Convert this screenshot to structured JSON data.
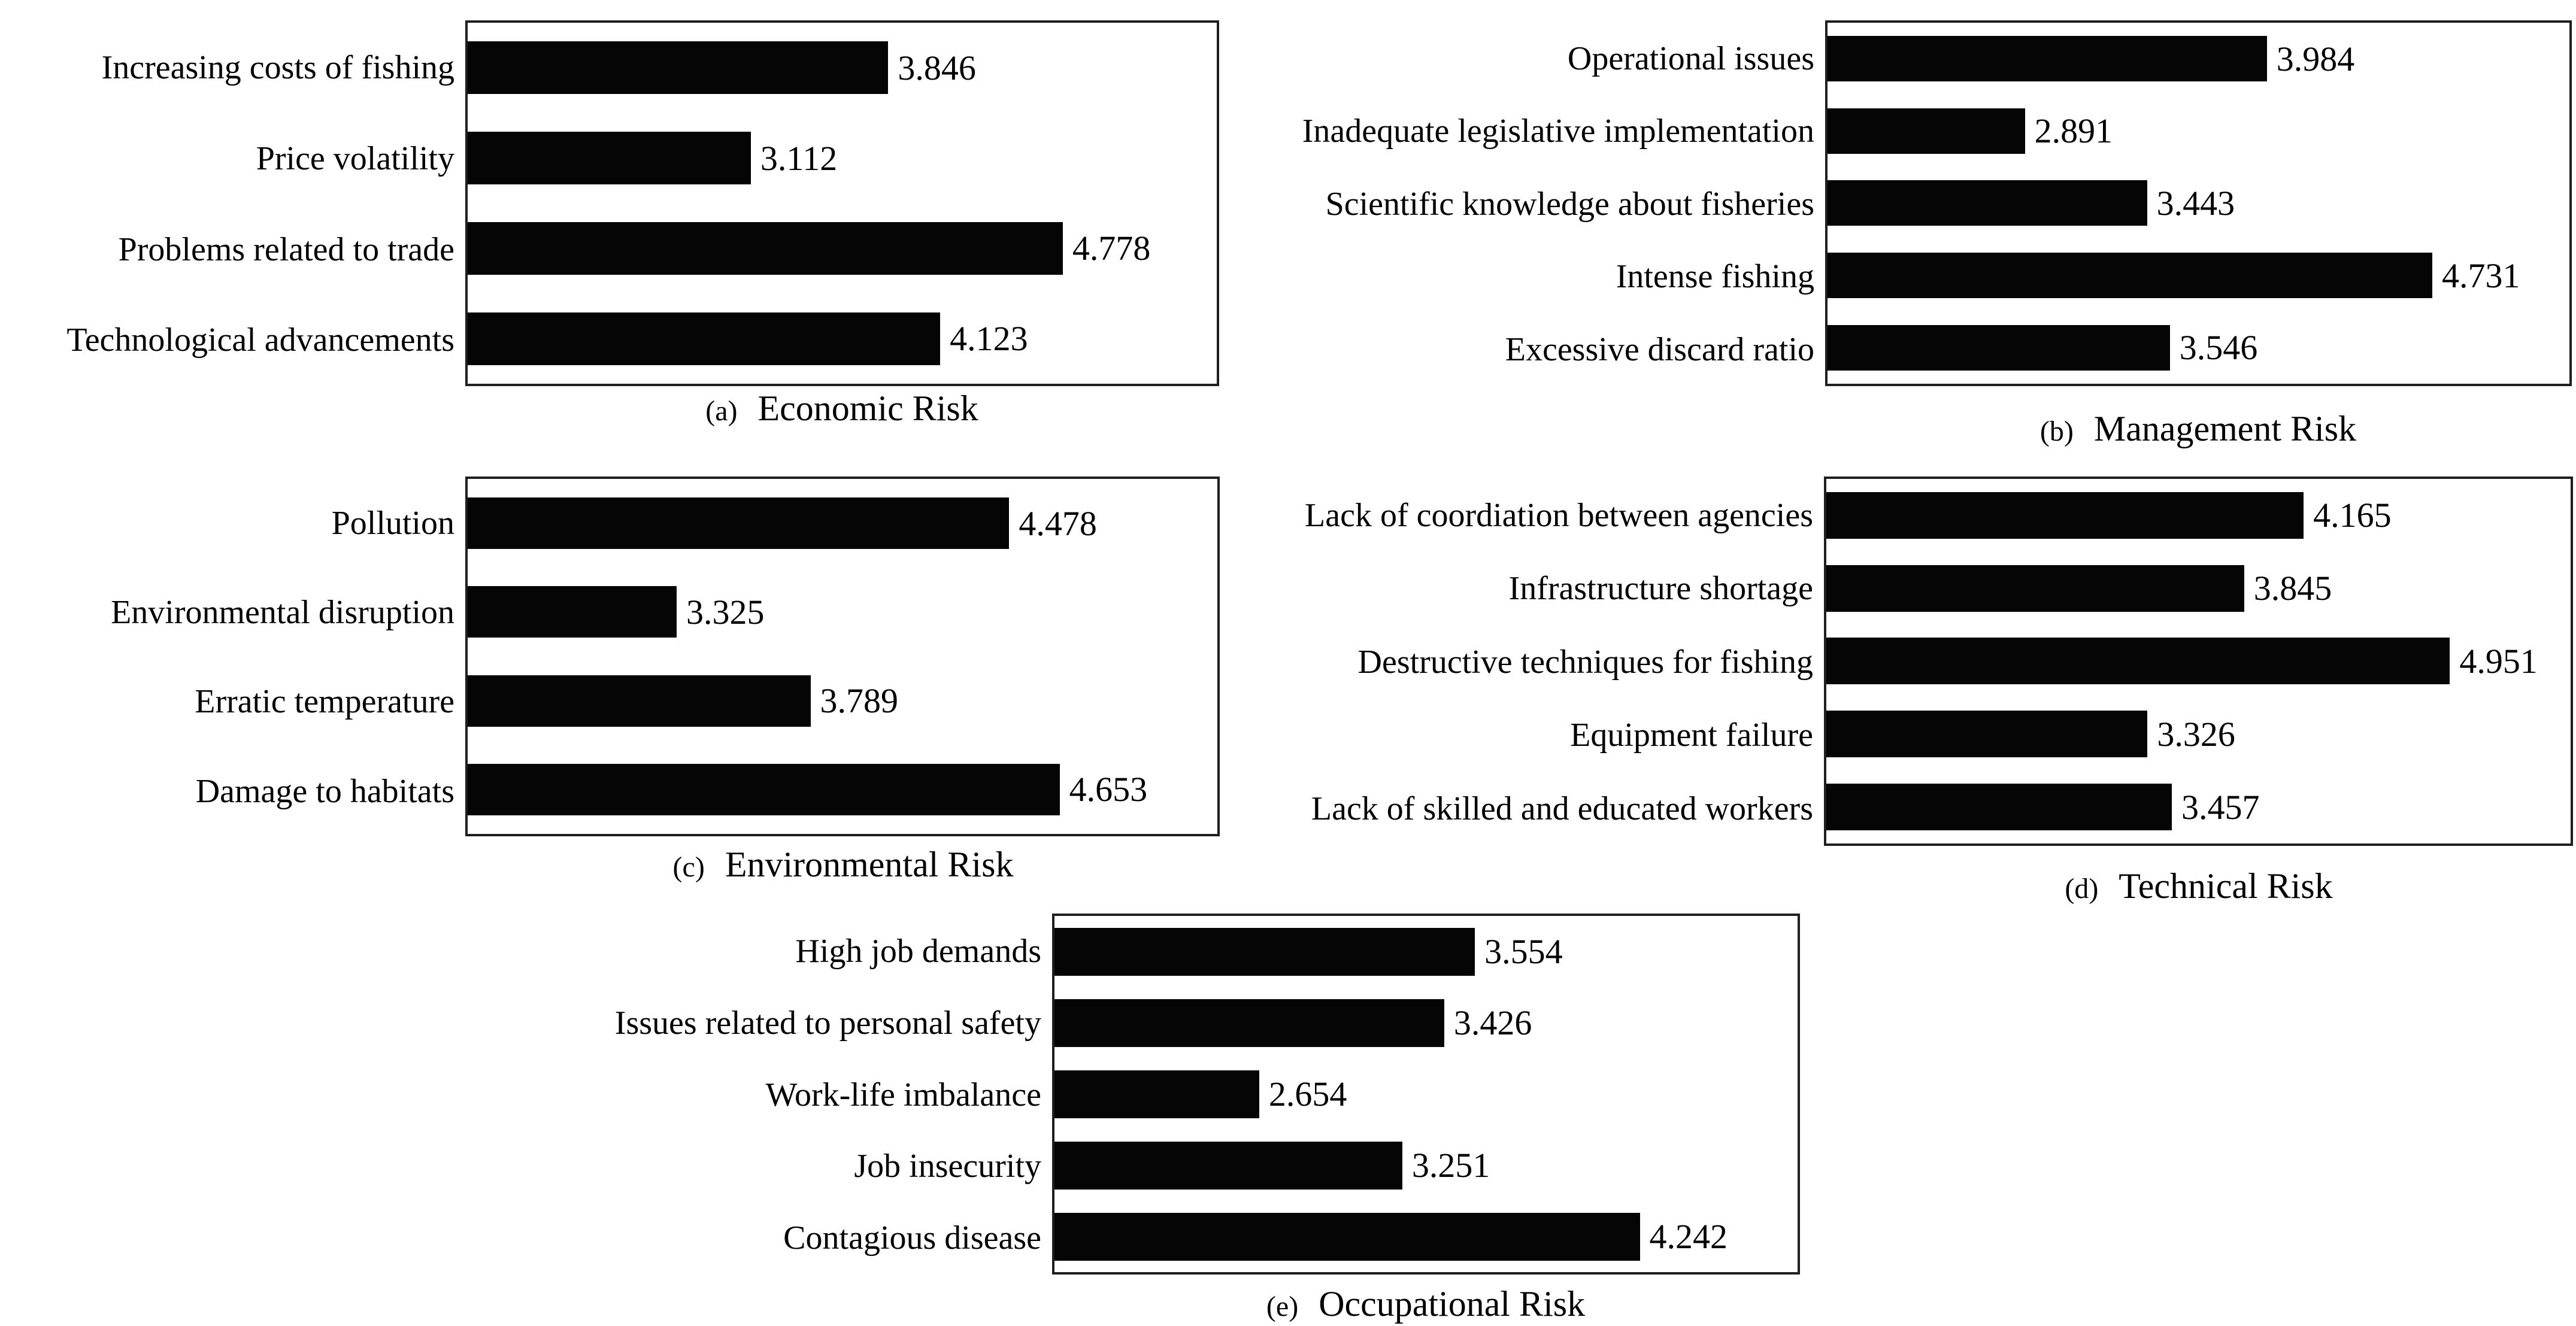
{
  "figure": {
    "background": "#ffffff",
    "bar_color": "#050505",
    "border_color": "#1f1f1f",
    "text_color": "#000000"
  },
  "chart_data": [
    {
      "id": "a",
      "type": "bar",
      "orientation": "horizontal",
      "caption_index": "(a)",
      "title": "Economic Risk",
      "categories": [
        "Increasing costs of fishing",
        "Price volatility",
        "Problems related to trade",
        "Technological advancements"
      ],
      "values": [
        3.846,
        3.112,
        4.778,
        4.123
      ],
      "xlim": [
        1.6,
        5.6
      ],
      "grid": false,
      "legend": "none",
      "value_labels_shown": true
    },
    {
      "id": "b",
      "type": "bar",
      "orientation": "horizontal",
      "caption_index": "(b)",
      "title": "Management Risk",
      "categories": [
        "Operational issues",
        "Inadequate legislative implementation",
        "Scientific knowledge about fisheries",
        "Intense fishing",
        "Excessive discard ratio"
      ],
      "values": [
        3.984,
        2.891,
        3.443,
        4.731,
        3.546
      ],
      "xlim": [
        2.0,
        5.35
      ],
      "grid": false,
      "legend": "none",
      "value_labels_shown": true
    },
    {
      "id": "c",
      "type": "bar",
      "orientation": "horizontal",
      "caption_index": "(c)",
      "title": "Environmental Risk",
      "categories": [
        "Pollution",
        "Environmental disruption",
        "Erratic temperature",
        "Damage to habitats"
      ],
      "values": [
        4.478,
        3.325,
        3.789,
        4.653
      ],
      "xlim": [
        2.6,
        5.2
      ],
      "grid": false,
      "legend": "none",
      "value_labels_shown": true
    },
    {
      "id": "d",
      "type": "bar",
      "orientation": "horizontal",
      "caption_index": "(d)",
      "title": "Technical Risk",
      "categories": [
        "Lack of coordiation between agencies",
        "Infrastructure shortage",
        "Destructive techniques for fishing",
        "Equipment failure",
        "Lack of skilled and educated workers"
      ],
      "values": [
        4.165,
        3.845,
        4.951,
        3.326,
        3.457
      ],
      "xlim": [
        1.6,
        5.6
      ],
      "grid": false,
      "legend": "none",
      "value_labels_shown": true
    },
    {
      "id": "e",
      "type": "bar",
      "orientation": "horizontal",
      "caption_index": "(e)",
      "title": "Occupational Risk",
      "categories": [
        "High job demands",
        "Issues related to personal safety",
        "Work-life imbalance",
        "Job insecurity",
        "Contagious disease"
      ],
      "values": [
        3.554,
        3.426,
        2.654,
        3.251,
        4.242
      ],
      "xlim": [
        1.8,
        4.9
      ],
      "grid": false,
      "legend": "none",
      "value_labels_shown": true
    }
  ]
}
